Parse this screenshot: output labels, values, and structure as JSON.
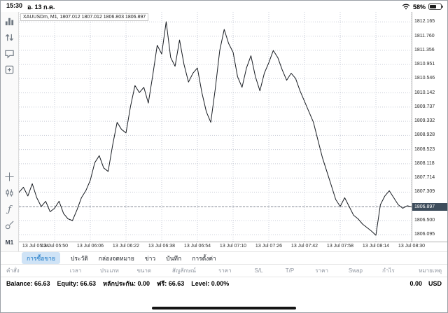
{
  "status_bar": {
    "time": "15:30",
    "date": "อ. 13 ก.ค.",
    "battery_percent": "58%"
  },
  "sidebar": {
    "timeframe": "M1",
    "icons": [
      "charts-icon",
      "quotes-icon",
      "messages-icon",
      "trade-icon",
      "crosshair-icon",
      "chart-type-icon",
      "indicators-icon",
      "objects-icon"
    ]
  },
  "chart": {
    "info_text": "XAUUSDm, M1, 1807.012 1807.012 1806.803 1806.897"
  },
  "chart_data": {
    "type": "line",
    "symbol": "XAUUSDm",
    "timeframe": "M1",
    "title": "XAUUSDm M1 price chart",
    "ohlc": {
      "open": 1807.012,
      "high": 1807.012,
      "low": 1806.803,
      "close": 1806.897
    },
    "current_price": 1806.897,
    "current_price_label": "1806.897",
    "price_min": 1805.9,
    "price_max": 1812.45,
    "interval_min": 2,
    "label_step_min": 16,
    "x_labels": [
      "13 Jul 05:34",
      "13 Jul 05:50",
      "13 Jul 06:06",
      "13 Jul 06:22",
      "13 Jul 06:38",
      "13 Jul 06:54",
      "13 Jul 07:10",
      "13 Jul 07:26",
      "13 Jul 07:42",
      "13 Jul 07:58",
      "13 Jul 08:14",
      "13 Jul 08:30"
    ],
    "y_axis": [
      1812.165,
      1811.76,
      1811.356,
      1810.951,
      1810.546,
      1810.142,
      1809.737,
      1809.332,
      1808.928,
      1808.523,
      1808.118,
      1807.714,
      1807.309,
      1806.904,
      1806.5,
      1806.095
    ],
    "prices": [
      1807.3,
      1807.45,
      1807.2,
      1807.55,
      1807.15,
      1806.9,
      1807.05,
      1806.75,
      1806.85,
      1807.05,
      1806.7,
      1806.55,
      1806.5,
      1806.8,
      1807.15,
      1807.35,
      1807.65,
      1808.15,
      1808.35,
      1808.0,
      1807.9,
      1808.65,
      1809.3,
      1809.1,
      1809.0,
      1809.75,
      1810.35,
      1810.15,
      1810.3,
      1809.85,
      1810.65,
      1811.5,
      1811.25,
      1812.17,
      1811.15,
      1810.9,
      1811.65,
      1810.95,
      1810.45,
      1810.7,
      1810.85,
      1810.15,
      1809.6,
      1809.3,
      1810.25,
      1811.35,
      1811.95,
      1811.55,
      1811.3,
      1810.6,
      1810.3,
      1810.85,
      1811.2,
      1810.6,
      1810.2,
      1810.7,
      1811.0,
      1811.35,
      1811.15,
      1810.8,
      1810.5,
      1810.7,
      1810.55,
      1810.2,
      1809.9,
      1809.6,
      1809.3,
      1808.8,
      1808.3,
      1807.9,
      1807.5,
      1807.1,
      1806.9,
      1807.15,
      1806.9,
      1806.65,
      1806.55,
      1806.4,
      1806.3,
      1806.2,
      1806.08,
      1806.95,
      1807.2,
      1807.35,
      1807.15,
      1806.95,
      1806.85,
      1806.92,
      1806.897
    ]
  },
  "tabs": [
    {
      "label": "การซื้อขาย",
      "active": true
    },
    {
      "label": "ประวัติ",
      "active": false
    },
    {
      "label": "กล่องจดหมาย",
      "active": false
    },
    {
      "label": "ข่าว",
      "active": false
    },
    {
      "label": "บันทึก",
      "active": false
    },
    {
      "label": "การตั้งค่า",
      "active": false
    }
  ],
  "trade_table": {
    "headers": [
      "คำสั่ง",
      "เวลา",
      "ประเภท",
      "ขนาด",
      "สัญลักษณ์",
      "ราคา",
      "S/L",
      "T/P",
      "ราคา",
      "Swap",
      "กำไร",
      "หมายเหตุ"
    ]
  },
  "account": {
    "fields": [
      {
        "label": "Balance:",
        "value": "66.63"
      },
      {
        "label": "Equity:",
        "value": "66.63"
      },
      {
        "label": "หลักประกัน:",
        "value": "0.00"
      },
      {
        "label": "ฟรี:",
        "value": "66.63"
      },
      {
        "label": "Level:",
        "value": "0.00%"
      }
    ],
    "profit": "0.00",
    "currency": "USD"
  }
}
